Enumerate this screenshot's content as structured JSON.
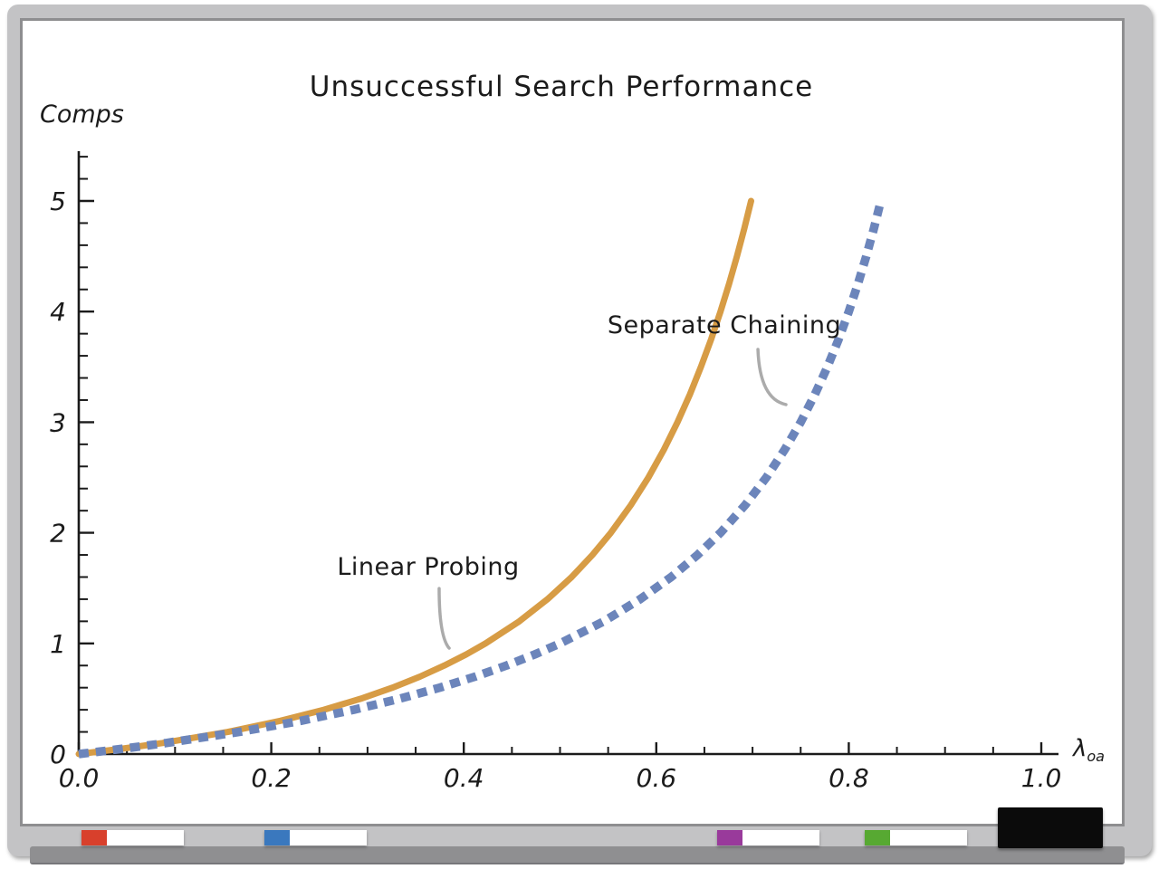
{
  "chart_data": {
    "type": "line",
    "title": "Unsuccessful Search Performance",
    "ylabel": "Comps",
    "xlabel": "λ_oa",
    "xlabel_main": "λ",
    "xlabel_sub": "oa",
    "xlim": [
      0,
      1.02
    ],
    "ylim": [
      0,
      5.45
    ],
    "grid": false,
    "x_major_ticks": [
      0.0,
      0.2,
      0.4,
      0.6,
      0.8,
      1.0
    ],
    "x_tick_labels": [
      "0.0",
      "0.2",
      "0.4",
      "0.6",
      "0.8",
      "1.0"
    ],
    "x_minor_step": 0.05,
    "y_major_ticks": [
      0,
      1,
      2,
      3,
      4,
      5
    ],
    "y_tick_labels": [
      "0",
      "1",
      "2",
      "3",
      "4",
      "5"
    ],
    "y_minor_step": 0.2,
    "series": [
      {
        "name": "Linear Probing",
        "style": "solid",
        "color": "#D79C45",
        "width": 7,
        "formula": "0.5*(1+1/(1-x)^2)-1",
        "points": [
          [
            0,
            0
          ],
          [
            0.0465,
            0.05
          ],
          [
            0.0871,
            0.1
          ],
          [
            0.1548,
            0.2
          ],
          [
            0.2094,
            0.3
          ],
          [
            0.2546,
            0.4
          ],
          [
            0.2929,
            0.5
          ],
          [
            0.3258,
            0.6
          ],
          [
            0.3545,
            0.7
          ],
          [
            0.3798,
            0.8
          ],
          [
            0.4024,
            0.9
          ],
          [
            0.4226,
            1.0
          ],
          [
            0.4577,
            1.2
          ],
          [
            0.487,
            1.4
          ],
          [
            0.512,
            1.6
          ],
          [
            0.5337,
            1.8
          ],
          [
            0.5528,
            2.0
          ],
          [
            0.5736,
            2.25
          ],
          [
            0.5918,
            2.5
          ],
          [
            0.6078,
            2.75
          ],
          [
            0.622,
            3.0
          ],
          [
            0.6349,
            3.25
          ],
          [
            0.6464,
            3.5
          ],
          [
            0.657,
            3.75
          ],
          [
            0.6667,
            4.0
          ],
          [
            0.6756,
            4.25
          ],
          [
            0.6838,
            4.5
          ],
          [
            0.6914,
            4.75
          ],
          [
            0.6985,
            5.0
          ]
        ]
      },
      {
        "name": "Separate Chaining",
        "style": "dashed",
        "color": "#6C85BB",
        "width": 9.5,
        "dash": [
          11,
          8
        ],
        "formula": "x/(1-x)",
        "points": [
          [
            0,
            0
          ],
          [
            0.0476,
            0.05
          ],
          [
            0.0909,
            0.1
          ],
          [
            0.1667,
            0.2
          ],
          [
            0.2308,
            0.3
          ],
          [
            0.2857,
            0.4
          ],
          [
            0.3333,
            0.5
          ],
          [
            0.375,
            0.6
          ],
          [
            0.4118,
            0.7
          ],
          [
            0.4444,
            0.8
          ],
          [
            0.4737,
            0.9
          ],
          [
            0.5,
            1.0
          ],
          [
            0.5455,
            1.2
          ],
          [
            0.5833,
            1.4
          ],
          [
            0.6154,
            1.6
          ],
          [
            0.6429,
            1.8
          ],
          [
            0.6667,
            2.0
          ],
          [
            0.6923,
            2.25
          ],
          [
            0.7143,
            2.5
          ],
          [
            0.7333,
            2.75
          ],
          [
            0.75,
            3.0
          ],
          [
            0.7647,
            3.25
          ],
          [
            0.7778,
            3.5
          ],
          [
            0.7895,
            3.75
          ],
          [
            0.8,
            4.0
          ],
          [
            0.8095,
            4.25
          ],
          [
            0.8182,
            4.5
          ],
          [
            0.8261,
            4.75
          ],
          [
            0.8333,
            5.0
          ]
        ]
      }
    ],
    "annotations": [
      {
        "label": "Linear Probing",
        "text_x": 0.363,
        "text_y": 1.69,
        "leader": {
          "x1": 0.3744,
          "y1": 1.497,
          "cx": 0.3744,
          "cy": 1.064,
          "x2": 0.3848,
          "y2": 0.957
        }
      },
      {
        "label": "Separate Chaining",
        "text_x": 0.6707,
        "text_y": 3.88,
        "leader": {
          "x1": 0.7056,
          "y1": 3.658,
          "cx": 0.7075,
          "cy": 3.21,
          "x2": 0.7347,
          "y2": 3.159
        }
      }
    ]
  },
  "colors": {
    "axis": "#1B1B1B",
    "leader": "#ABABAB",
    "frame": "#C3C3C5",
    "frame_border": "#8E8E90",
    "tray_bar": "#8F8F91",
    "board": "#FFFFFF"
  },
  "tray": {
    "markers": [
      {
        "name": "red",
        "cap_color": "#D8402C",
        "body_color": "#FFFFFF"
      },
      {
        "name": "blue",
        "cap_color": "#3A78BE",
        "body_color": "#FFFFFF"
      },
      {
        "name": "purple",
        "cap_color": "#993A9B",
        "body_color": "#FFFFFF"
      },
      {
        "name": "green",
        "cap_color": "#57A932",
        "body_color": "#FFFFFF"
      }
    ],
    "eraser_color": "#0B0B0B"
  }
}
